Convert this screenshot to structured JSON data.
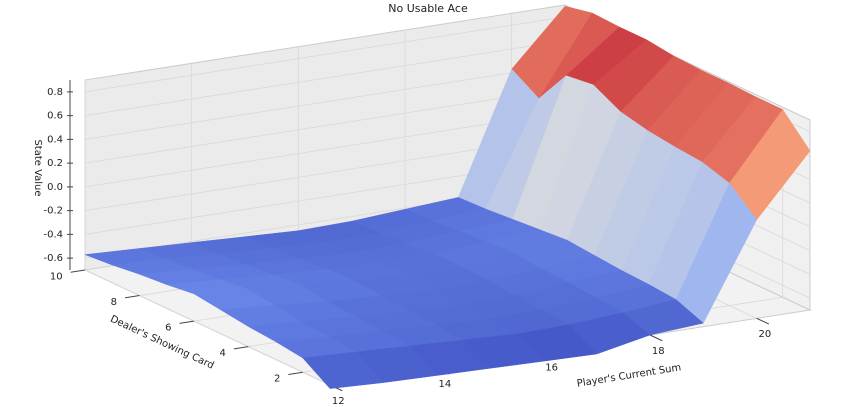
{
  "chart_data": {
    "type": "surface",
    "title": "No Usable Ace",
    "xlabel": "Player's Current Sum",
    "ylabel": "Dealer's Showing Card",
    "zlabel": "State Value",
    "x": [
      12,
      13,
      14,
      15,
      16,
      17,
      18,
      19,
      20,
      21
    ],
    "y": [
      1,
      2,
      3,
      4,
      5,
      6,
      7,
      8,
      9,
      10
    ],
    "z": [
      [
        -0.73,
        -0.75,
        -0.76,
        -0.77,
        -0.78,
        -0.79,
        -0.7,
        -0.67,
        0.13,
        0.64
      ],
      [
        -0.58,
        -0.6,
        -0.62,
        -0.64,
        -0.66,
        -0.65,
        -0.62,
        -0.58,
        0.33,
        0.88
      ],
      [
        -0.55,
        -0.58,
        -0.6,
        -0.62,
        -0.64,
        -0.63,
        -0.6,
        -0.56,
        0.4,
        0.88
      ],
      [
        -0.53,
        -0.56,
        -0.59,
        -0.61,
        -0.63,
        -0.62,
        -0.58,
        -0.55,
        0.42,
        0.89
      ],
      [
        -0.5,
        -0.53,
        -0.57,
        -0.59,
        -0.62,
        -0.6,
        -0.57,
        -0.53,
        0.45,
        0.89
      ],
      [
        -0.47,
        -0.5,
        -0.54,
        -0.57,
        -0.6,
        -0.59,
        -0.55,
        -0.51,
        0.5,
        0.9
      ],
      [
        -0.5,
        -0.53,
        -0.56,
        -0.58,
        -0.6,
        -0.59,
        -0.56,
        -0.53,
        0.62,
        0.93
      ],
      [
        -0.52,
        -0.55,
        -0.58,
        -0.6,
        -0.62,
        -0.61,
        -0.58,
        -0.55,
        0.59,
        0.93
      ],
      [
        -0.55,
        -0.57,
        -0.6,
        -0.62,
        -0.64,
        -0.63,
        -0.6,
        -0.57,
        0.29,
        0.94
      ],
      [
        -0.57,
        -0.59,
        -0.61,
        -0.63,
        -0.65,
        -0.64,
        -0.61,
        -0.58,
        0.43,
        0.89
      ]
    ],
    "xlim": [
      12,
      21
    ],
    "ylim": [
      1,
      10
    ],
    "zlim": [
      -0.7,
      0.9
    ],
    "xticks": [
      12,
      14,
      16,
      18,
      20
    ],
    "yticks": [
      2,
      4,
      6,
      8,
      10
    ],
    "zticks": [
      -0.6,
      -0.4,
      -0.2,
      {
        "value": 0,
        "label": "0.0"
      },
      0.2,
      0.4,
      0.6,
      0.8
    ],
    "colormap": "coolwarm",
    "grid": true
  }
}
